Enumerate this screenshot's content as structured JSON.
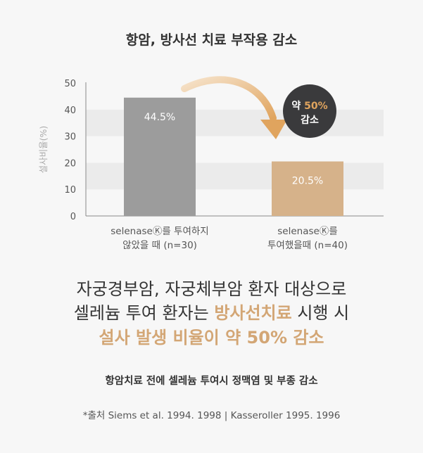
{
  "chart_data": {
    "type": "bar",
    "title": "항암, 방사선 치료 부작용 감소",
    "ylabel": "설사비율(%)",
    "ylim": [
      0,
      50
    ],
    "yticks": [
      0,
      10,
      20,
      30,
      40,
      50
    ],
    "categories": [
      [
        "selenaseⓀ를 투여하지",
        "않았을 때 (n=30)"
      ],
      [
        "selenaseⓀ를",
        "투여했을때 (n=40)"
      ]
    ],
    "values": [
      44.5,
      20.5
    ],
    "data_labels": [
      "44.5%",
      "20.5%"
    ],
    "annotation": {
      "prefix": "약 ",
      "value": "50%",
      "line2": "감소"
    },
    "colors": {
      "bar1": "#9c9c9c",
      "bar2": "#d6b28a",
      "accent": "#e0a45e",
      "badge": "#3a3a3c",
      "band": "#ebebeb"
    }
  },
  "headline": {
    "line1": "자궁경부암, 자궁체부암 환자 대상으로",
    "line2_pre": "셀레늄 투여 환자는 ",
    "line2_hl": "방사선치료",
    "line2_post": " 시행 시",
    "line3": "설사 발생 비율이 약 50% 감소"
  },
  "subtitle": "항암치료 전에 셀레늄 투여시 정맥염 및 부종 감소",
  "source": "*출처 Siems et al. 1994. 1998 | Kasseroller 1995. 1996"
}
